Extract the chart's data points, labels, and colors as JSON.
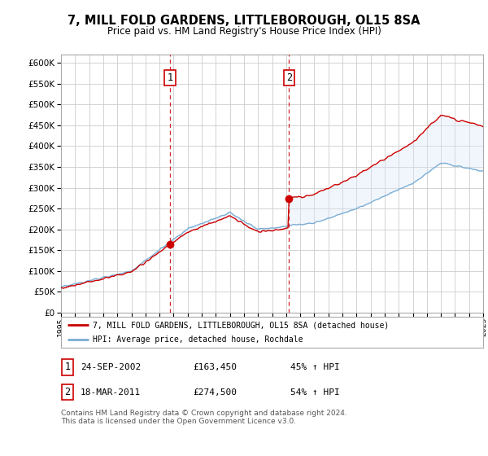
{
  "title": "7, MILL FOLD GARDENS, LITTLEBOROUGH, OL15 8SA",
  "subtitle": "Price paid vs. HM Land Registry's House Price Index (HPI)",
  "legend_line1": "7, MILL FOLD GARDENS, LITTLEBOROUGH, OL15 8SA (detached house)",
  "legend_line2": "HPI: Average price, detached house, Rochdale",
  "sale1_date": "24-SEP-2002",
  "sale1_price": 163450,
  "sale1_label": "1",
  "sale1_year": 2002.73,
  "sale2_date": "18-MAR-2011",
  "sale2_price": 274500,
  "sale2_label": "2",
  "sale2_year": 2011.21,
  "footnote": "Contains HM Land Registry data © Crown copyright and database right 2024.\nThis data is licensed under the Open Government Licence v3.0.",
  "background_color": "#ffffff",
  "plot_bg_color": "#ffffff",
  "grid_color": "#cccccc",
  "shade_color": "#d8e8f8",
  "red_line_color": "#cc0000",
  "blue_line_color": "#7aadd4",
  "ylim_max": 620000,
  "xlim_min": 1995,
  "xlim_max": 2025
}
